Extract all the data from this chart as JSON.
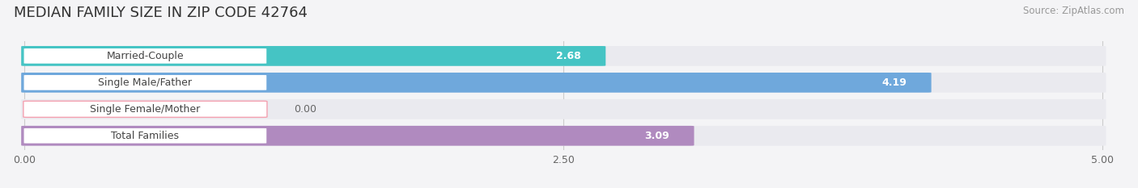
{
  "title": "MEDIAN FAMILY SIZE IN ZIP CODE 42764",
  "source": "Source: ZipAtlas.com",
  "categories": [
    "Married-Couple",
    "Single Male/Father",
    "Single Female/Mother",
    "Total Families"
  ],
  "values": [
    2.68,
    4.19,
    0.0,
    3.09
  ],
  "bar_colors": [
    "#45c4c4",
    "#6fa8dc",
    "#f4a0b0",
    "#b08abf"
  ],
  "label_bg_color": "#ffffff",
  "background_color": "#f4f4f6",
  "row_bg_color": "#eaeaef",
  "xlim_max": 5.0,
  "xticks": [
    0.0,
    2.5,
    5.0
  ],
  "title_fontsize": 13,
  "label_fontsize": 9,
  "value_fontsize": 9,
  "source_fontsize": 8.5,
  "value_inside_color": "#ffffff",
  "value_outside_color": "#666666"
}
